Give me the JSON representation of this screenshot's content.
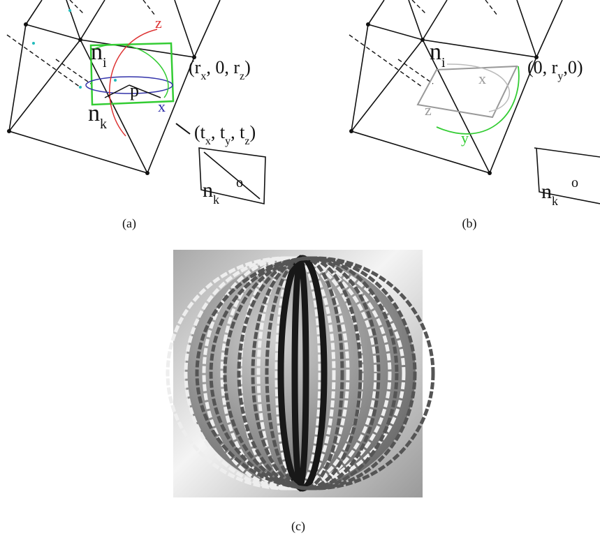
{
  "panel_a": {
    "caption": "(a)",
    "labels": [
      [
        {
          "t": "n"
        },
        {
          "s": "i"
        }
      ],
      [
        {
          "t": "z"
        }
      ],
      [
        {
          "t": "p"
        }
      ],
      [
        {
          "t": "x"
        }
      ],
      [
        {
          "t": "n"
        },
        {
          "s": "k"
        }
      ],
      [
        {
          "t": "(r"
        },
        {
          "s": "x"
        },
        {
          "t": ", 0, r"
        },
        {
          "s": "z"
        },
        {
          "t": ")"
        }
      ],
      [
        {
          "t": "(t"
        },
        {
          "s": "x"
        },
        {
          "t": ", t"
        },
        {
          "s": "y"
        },
        {
          "t": ", t"
        },
        {
          "s": "z"
        },
        {
          "t": ")"
        }
      ],
      [
        {
          "t": "n"
        },
        {
          "s": "k"
        }
      ],
      [
        {
          "t": "o"
        }
      ]
    ]
  },
  "panel_b": {
    "caption": "(b)",
    "labels": [
      [
        {
          "t": "n"
        },
        {
          "s": "i"
        }
      ],
      [
        {
          "t": "x"
        }
      ],
      [
        {
          "t": "z"
        }
      ],
      [
        {
          "t": "y"
        }
      ],
      [
        {
          "t": "(0, r"
        },
        {
          "s": "y"
        },
        {
          "t": ",0)"
        }
      ],
      [
        {
          "t": "n"
        },
        {
          "s": "k"
        }
      ],
      [
        {
          "t": "o"
        }
      ]
    ]
  },
  "panel_c": {
    "caption": "(c)"
  }
}
